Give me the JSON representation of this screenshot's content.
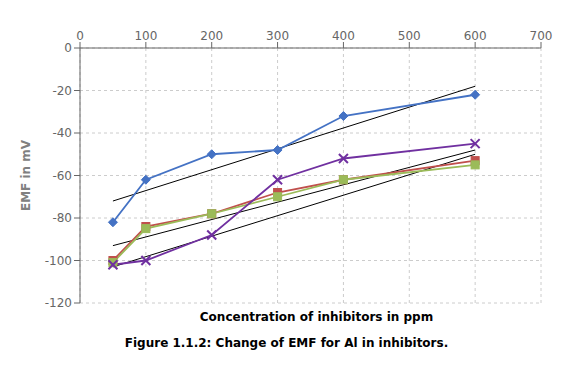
{
  "chart_data": {
    "type": "line",
    "caption": "Figure 1.1.2: Change of EMF for Al in inhibitors.",
    "x_label": "Concentration of inhibitors in ppm",
    "y_label": "EMF in mV",
    "xlim": [
      0,
      700
    ],
    "ylim": [
      -120,
      0
    ],
    "xticks": [
      0,
      100,
      200,
      300,
      400,
      500,
      600,
      700
    ],
    "yticks": [
      0,
      -20,
      -40,
      -60,
      -80,
      -100,
      -120
    ],
    "grid": true,
    "series": [
      {
        "color": "#000000",
        "marker": "none",
        "line_style": "solid",
        "x": [
          50,
          600
        ],
        "values": [
          -72,
          -18
        ]
      },
      {
        "color": "#000000",
        "marker": "none",
        "line_style": "solid",
        "x": [
          50,
          600
        ],
        "values": [
          -93,
          -48
        ]
      },
      {
        "color": "#000000",
        "marker": "none",
        "line_style": "solid",
        "x": [
          50,
          600
        ],
        "values": [
          -103,
          -50
        ]
      },
      {
        "color": "#4472C4",
        "marker": "diamond",
        "line_style": "solid",
        "x": [
          50,
          100,
          200,
          300,
          400,
          600
        ],
        "values": [
          -82,
          -62,
          -50,
          -48,
          -32,
          -22
        ]
      },
      {
        "color": "#C0504D",
        "marker": "square",
        "line_style": "solid",
        "x": [
          50,
          100,
          200,
          300,
          400,
          600
        ],
        "values": [
          -100,
          -84,
          -78,
          -68,
          -62,
          -53
        ]
      },
      {
        "color": "#9BBB59",
        "marker": "square",
        "line_style": "solid",
        "x": [
          50,
          100,
          200,
          300,
          400,
          600
        ],
        "values": [
          -101,
          -85,
          -78,
          -70,
          -62,
          -55
        ]
      },
      {
        "color": "#7030A0",
        "marker": "x",
        "line_style": "solid",
        "x": [
          50,
          100,
          200,
          300,
          400,
          600
        ],
        "values": [
          -102,
          -100,
          -88,
          -62,
          -52,
          -45
        ]
      }
    ]
  }
}
